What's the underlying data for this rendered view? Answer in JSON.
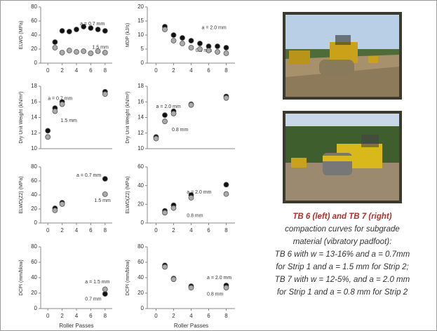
{
  "chart_data": [
    {
      "type": "scatter",
      "ylabel": "ELWD (MPa)",
      "x": [
        1,
        2,
        3,
        4,
        5,
        6,
        7,
        8
      ],
      "xlim": [
        -1,
        9
      ],
      "xticks": [
        0,
        2,
        4,
        6,
        8
      ],
      "ylim": [
        0,
        80
      ],
      "yticks": [
        0,
        20,
        40,
        60,
        80
      ],
      "series": [
        {
          "color": "#111111",
          "values": [
            30,
            46,
            45,
            48,
            52,
            50,
            48,
            46
          ]
        },
        {
          "color": "#aaaaaa",
          "values": [
            22,
            15,
            18,
            16,
            17,
            14,
            17,
            15
          ]
        }
      ],
      "annotations": [
        "a = 0.7 mm",
        "1.5 mm"
      ]
    },
    {
      "type": "scatter",
      "ylabel": "MDP (kJ/s)",
      "x": [
        1,
        2,
        3,
        4,
        5,
        6,
        7,
        8
      ],
      "xlim": [
        -1,
        9
      ],
      "xticks": [
        0,
        2,
        4,
        6,
        8
      ],
      "ylim": [
        0,
        20
      ],
      "yticks": [
        0,
        5,
        10,
        15,
        20
      ],
      "series": [
        {
          "color": "#111111",
          "values": [
            13,
            10,
            9,
            8,
            7,
            6,
            6,
            5.5
          ]
        },
        {
          "color": "#aaaaaa",
          "values": [
            12,
            8,
            7,
            5.5,
            5,
            4.5,
            4,
            3.5
          ]
        }
      ],
      "annotations": [
        "a = 2.0 mm",
        "0.8 mm"
      ]
    },
    {
      "type": "scatter",
      "ylabel": "Dry Unit Weight (kN/m³)",
      "x": [
        0,
        1,
        2,
        8
      ],
      "xlim": [
        -1,
        9
      ],
      "ylim": [
        10,
        18
      ],
      "yticks": [
        10,
        12,
        14,
        16,
        18
      ],
      "series": [
        {
          "color": "#111111",
          "values": [
            12.3,
            15.2,
            16.0,
            17.3
          ]
        },
        {
          "color": "#aaaaaa",
          "values": [
            11.5,
            14.8,
            15.7,
            17.0
          ]
        }
      ],
      "annotations": [
        "a = 0.7 mm",
        "1.5 mm"
      ]
    },
    {
      "type": "scatter",
      "ylabel": "Dry Unit Weight (kN/m³)",
      "x": [
        0,
        1,
        2,
        4,
        8
      ],
      "xlim": [
        -1,
        9
      ],
      "ylim": [
        10,
        18
      ],
      "yticks": [
        10,
        12,
        14,
        16,
        18
      ],
      "series": [
        {
          "color": "#111111",
          "values": [
            11.5,
            14.3,
            14.8,
            15.7,
            16.7
          ]
        },
        {
          "color": "#aaaaaa",
          "values": [
            11.3,
            13.5,
            14.5,
            15.6,
            16.5
          ]
        }
      ],
      "annotations": [
        "a = 2.0 mm",
        "0.8 mm"
      ]
    },
    {
      "type": "scatter",
      "ylabel": "ELWD(Z2) (MPa)",
      "x": [
        1,
        2,
        8
      ],
      "xlim": [
        -1,
        9
      ],
      "xticks": [
        0,
        2,
        4,
        6,
        8
      ],
      "ylim": [
        0,
        80
      ],
      "yticks": [
        0,
        20,
        40,
        60,
        80
      ],
      "series": [
        {
          "color": "#111111",
          "values": [
            21,
            29,
            63
          ]
        },
        {
          "color": "#aaaaaa",
          "values": [
            18,
            27,
            41
          ]
        }
      ],
      "annotations": [
        "a = 0.7 mm",
        "1.5 mm"
      ]
    },
    {
      "type": "scatter",
      "ylabel": "ELWD(Z2) (MPa)",
      "x": [
        1,
        2,
        4,
        8
      ],
      "xlim": [
        -1,
        9
      ],
      "xticks": [
        0,
        2,
        4,
        6,
        8
      ],
      "ylim": [
        0,
        60
      ],
      "yticks": [
        0,
        20,
        40,
        60
      ],
      "series": [
        {
          "color": "#111111",
          "values": [
            13,
            19,
            30,
            41
          ]
        },
        {
          "color": "#aaaaaa",
          "values": [
            11,
            16,
            27,
            31
          ]
        }
      ],
      "annotations": [
        "a = 2.0 mm",
        "0.8 mm"
      ]
    },
    {
      "type": "scatter",
      "ylabel": "DCPI (mm/blow)",
      "xlabel": "Roller Passes",
      "x": [
        8
      ],
      "xlim": [
        -1,
        9
      ],
      "xticks": [
        0,
        2,
        4,
        6,
        8
      ],
      "ylim": [
        0,
        80
      ],
      "yticks": [
        0,
        20,
        40,
        60,
        80
      ],
      "series": [
        {
          "color": "#111111",
          "values": [
            19
          ]
        },
        {
          "color": "#aaaaaa",
          "values": [
            25
          ]
        }
      ],
      "annotations": [
        "a = 1.5 mm",
        "0.7 mm"
      ]
    },
    {
      "type": "scatter",
      "ylabel": "DCPI (mm/blow)",
      "xlabel": "Roller Passes",
      "x": [
        1,
        2,
        4,
        8
      ],
      "xlim": [
        -1,
        9
      ],
      "xticks": [
        0,
        2,
        4,
        6,
        8
      ],
      "ylim": [
        0,
        80
      ],
      "yticks": [
        0,
        20,
        40,
        60,
        80
      ],
      "series": [
        {
          "color": "#111111",
          "values": [
            56,
            39,
            29,
            30
          ]
        },
        {
          "color": "#aaaaaa",
          "values": [
            54,
            38,
            27,
            27
          ]
        }
      ],
      "annotations": [
        "a = 2.0 mm",
        "0.8 mm"
      ]
    }
  ],
  "caption": {
    "title": "TB 6 (left) and TB 7 (right)",
    "lines": [
      "compaction curves for subgrade",
      "material (vibratory padfoot):",
      "TB 6 with w = 13-16% and a = 0.7mm",
      "for Strip 1 and a = 1.5 mm for Strip 2;",
      "TB 7 with w = 12-5%, and a = 2.0 mm",
      "for Strip 1 and a = 0.8 mm for Strip 2"
    ]
  }
}
